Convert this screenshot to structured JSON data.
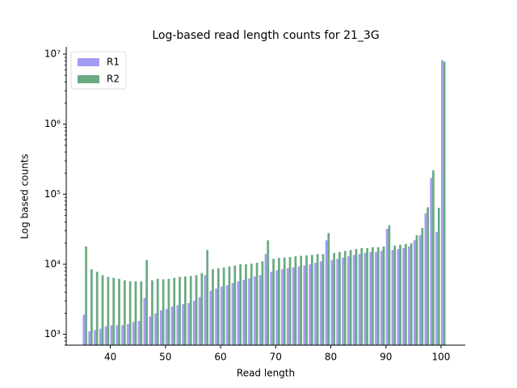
{
  "chart_data": {
    "type": "bar",
    "title": "Log-based read length counts for 21_3G",
    "xlabel": "Read length",
    "ylabel": "Log based counts",
    "x": [
      35,
      36,
      37,
      38,
      39,
      40,
      41,
      42,
      43,
      44,
      45,
      46,
      47,
      48,
      49,
      50,
      51,
      52,
      53,
      54,
      55,
      56,
      57,
      58,
      59,
      60,
      61,
      62,
      63,
      64,
      65,
      66,
      67,
      68,
      69,
      70,
      71,
      72,
      73,
      74,
      75,
      76,
      77,
      78,
      79,
      80,
      81,
      82,
      83,
      84,
      85,
      86,
      87,
      88,
      89,
      90,
      91,
      92,
      93,
      94,
      95,
      96,
      97,
      98,
      99,
      100
    ],
    "series": [
      {
        "name": "R1",
        "color": "#a39cf4",
        "values": [
          1900,
          1100,
          1150,
          1200,
          1300,
          1350,
          1350,
          1350,
          1400,
          1500,
          1550,
          3300,
          1800,
          2000,
          2200,
          2300,
          2500,
          2600,
          2700,
          2800,
          3000,
          3400,
          7000,
          4200,
          4500,
          4800,
          5000,
          5400,
          5700,
          6000,
          6300,
          6700,
          7000,
          14000,
          7800,
          8200,
          8500,
          8800,
          9000,
          9300,
          9600,
          10000,
          10500,
          11000,
          22000,
          11500,
          12000,
          12500,
          13000,
          13500,
          14000,
          14500,
          15000,
          15000,
          15500,
          32000,
          16000,
          16500,
          17000,
          18000,
          22000,
          26000,
          53000,
          170000,
          29000,
          8200000
        ]
      },
      {
        "name": "R2",
        "color": "#6aaa82",
        "values": [
          18000,
          8500,
          7800,
          7000,
          6600,
          6400,
          6200,
          5900,
          5700,
          5700,
          5700,
          11500,
          5900,
          6200,
          6100,
          6200,
          6400,
          6600,
          6700,
          6800,
          7000,
          7500,
          16000,
          8500,
          8800,
          9000,
          9300,
          9600,
          10000,
          10000,
          10200,
          10500,
          11000,
          22000,
          12000,
          12300,
          12500,
          12700,
          13000,
          13200,
          13400,
          13600,
          14000,
          14000,
          28000,
          14500,
          15000,
          15500,
          16000,
          16500,
          17000,
          17000,
          17500,
          17500,
          18000,
          36000,
          18500,
          19000,
          19500,
          20000,
          26000,
          33000,
          65000,
          220000,
          64000,
          7800000
        ]
      }
    ],
    "xlim": [
      32,
      104.4
    ],
    "xticks": [
      40,
      50,
      60,
      70,
      80,
      90,
      100
    ],
    "ylim": [
      700,
      12700000
    ],
    "log_y": true,
    "yticks": [
      {
        "value": 1000,
        "label": "10³"
      },
      {
        "value": 10000,
        "label": "10⁴"
      },
      {
        "value": 100000,
        "label": "10⁵"
      },
      {
        "value": 1000000,
        "label": "10⁶"
      },
      {
        "value": 10000000,
        "label": "10⁷"
      }
    ],
    "legend": "upper left"
  }
}
